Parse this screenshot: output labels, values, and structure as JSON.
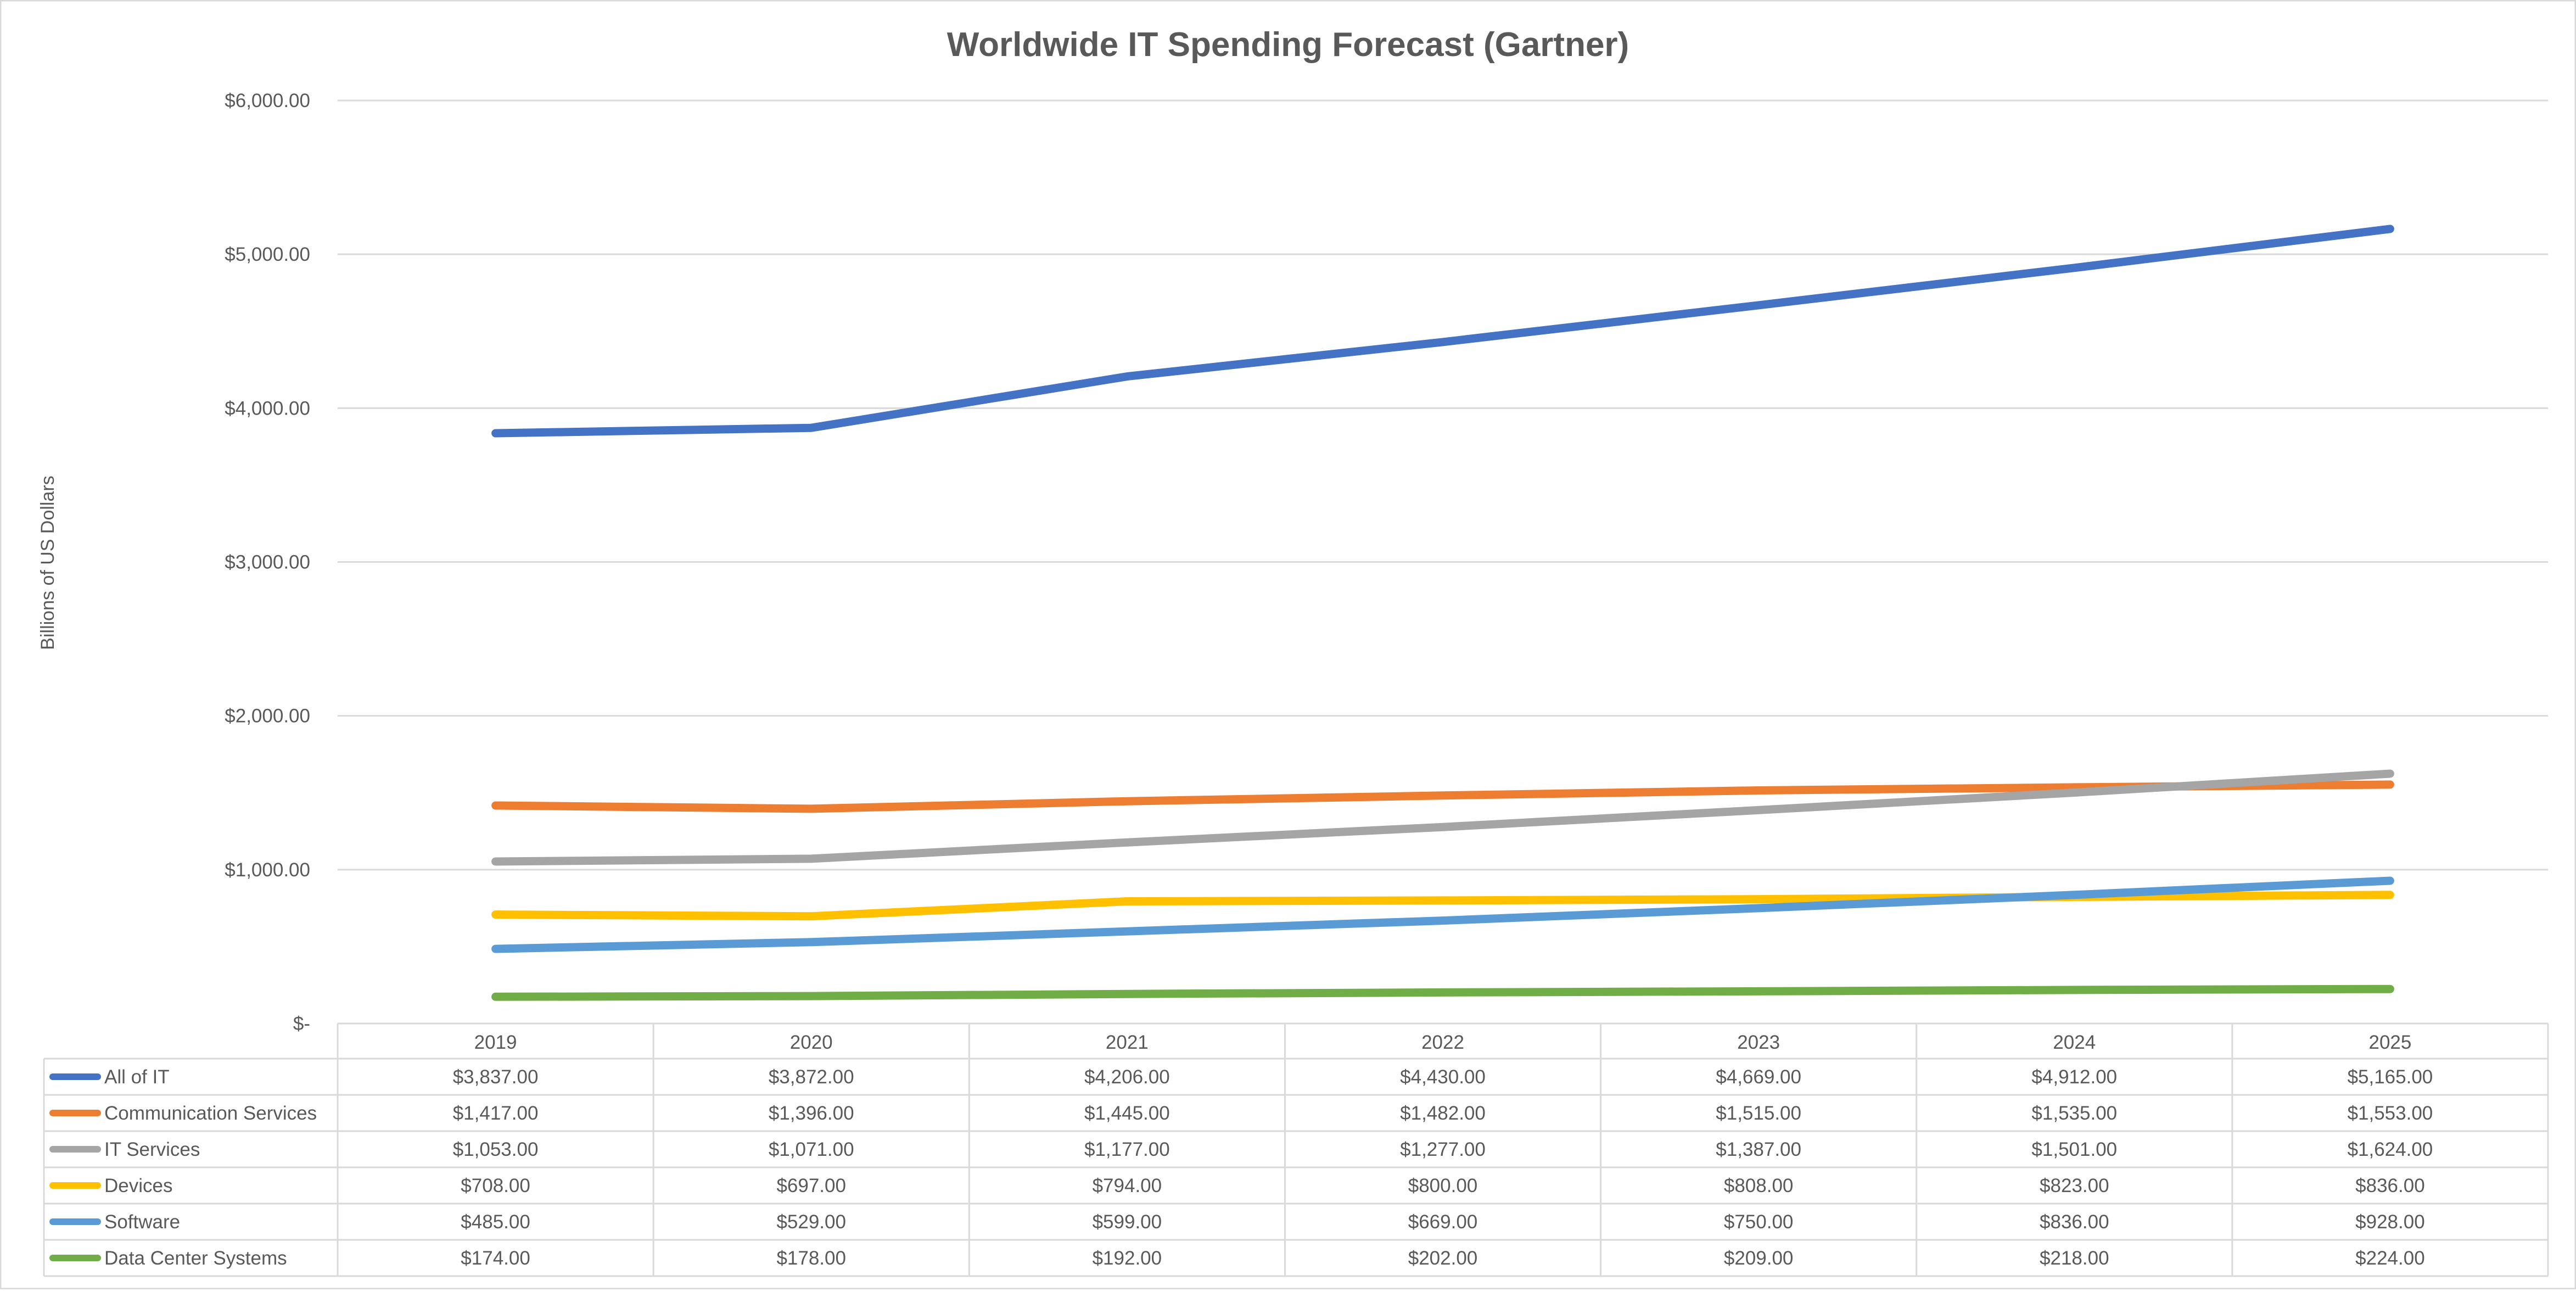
{
  "chart_data": {
    "type": "line",
    "title": "Worldwide IT Spending Forecast (Gartner)",
    "ylabel": "Billions of US Dollars",
    "xlabel": "",
    "categories": [
      "2019",
      "2020",
      "2021",
      "2022",
      "2023",
      "2024",
      "2025"
    ],
    "ylim": [
      0,
      6000
    ],
    "yticks": [
      0,
      1000,
      2000,
      3000,
      4000,
      5000,
      6000
    ],
    "ytick_labels": [
      "$-",
      "$1,000.00",
      "$2,000.00",
      "$3,000.00",
      "$4,000.00",
      "$5,000.00",
      "$6,000.00"
    ],
    "grid": true,
    "legend": "data-table",
    "series": [
      {
        "name": "All of IT",
        "color": "#4472C4",
        "values": [
          3837,
          3872,
          4206,
          4430,
          4669,
          4912,
          5165
        ],
        "labels": [
          "$3,837.00",
          "$3,872.00",
          "$4,206.00",
          "$4,430.00",
          "$4,669.00",
          "$4,912.00",
          "$5,165.00"
        ]
      },
      {
        "name": "Communication Services",
        "color": "#ED7D31",
        "values": [
          1417,
          1396,
          1445,
          1482,
          1515,
          1535,
          1553
        ],
        "labels": [
          "$1,417.00",
          "$1,396.00",
          "$1,445.00",
          "$1,482.00",
          "$1,515.00",
          "$1,535.00",
          "$1,553.00"
        ]
      },
      {
        "name": "IT Services",
        "color": "#A5A5A5",
        "values": [
          1053,
          1071,
          1177,
          1277,
          1387,
          1501,
          1624
        ],
        "labels": [
          "$1,053.00",
          "$1,071.00",
          "$1,177.00",
          "$1,277.00",
          "$1,387.00",
          "$1,501.00",
          "$1,624.00"
        ]
      },
      {
        "name": "Devices",
        "color": "#FFC000",
        "values": [
          708,
          697,
          794,
          800,
          808,
          823,
          836
        ],
        "labels": [
          "$708.00",
          "$697.00",
          "$794.00",
          "$800.00",
          "$808.00",
          "$823.00",
          "$836.00"
        ]
      },
      {
        "name": "Software",
        "color": "#5B9BD5",
        "values": [
          485,
          529,
          599,
          669,
          750,
          836,
          928
        ],
        "labels": [
          "$485.00",
          "$529.00",
          "$599.00",
          "$669.00",
          "$750.00",
          "$836.00",
          "$928.00"
        ]
      },
      {
        "name": "Data Center Systems",
        "color": "#70AD47",
        "values": [
          174,
          178,
          192,
          202,
          209,
          218,
          224
        ],
        "labels": [
          "$174.00",
          "$178.00",
          "$192.00",
          "$202.00",
          "$209.00",
          "$218.00",
          "$224.00"
        ]
      }
    ]
  }
}
